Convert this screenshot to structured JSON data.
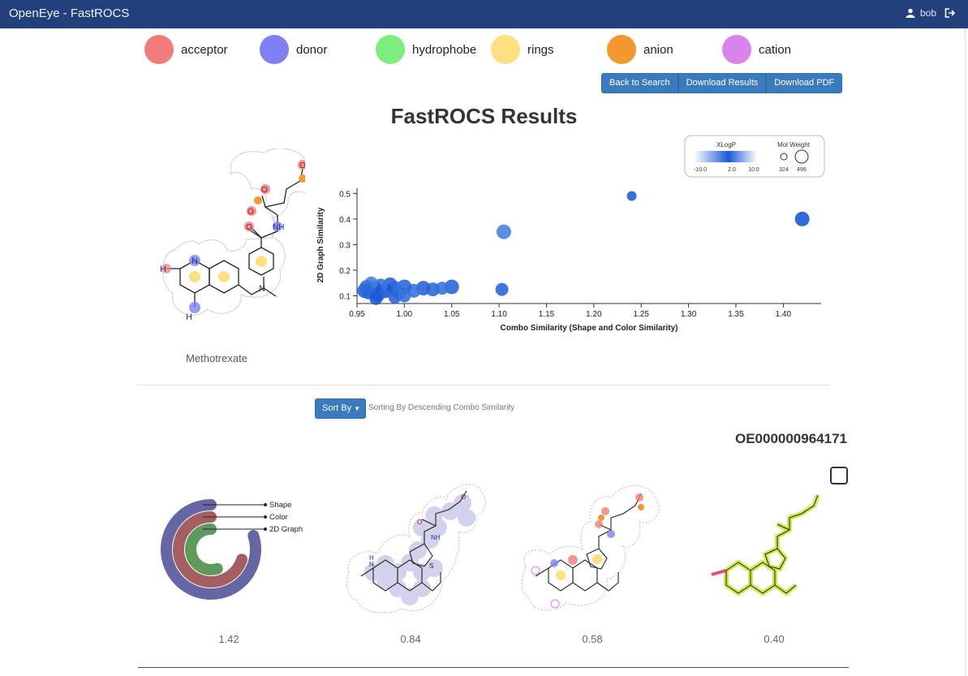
{
  "app": {
    "title": "OpenEye - FastROCS"
  },
  "user": {
    "name": "bob",
    "user_icon": "user-icon",
    "logout_icon": "logout-icon"
  },
  "features": [
    {
      "label": "acceptor",
      "color": "#f47b7b"
    },
    {
      "label": "donor",
      "color": "#8080f5"
    },
    {
      "label": "hydrophobe",
      "color": "#7ded7d"
    },
    {
      "label": "rings",
      "color": "#fde07f"
    },
    {
      "label": "anion",
      "color": "#f5972f"
    },
    {
      "label": "cation",
      "color": "#db83ec"
    }
  ],
  "toolbar": {
    "back": "Back to Search",
    "download_results": "Download Results",
    "download_pdf": "Download PDF"
  },
  "page_title": "FastROCS Results",
  "query": {
    "name": "Methotrexate",
    "atom_labels": {
      "nh2_a": "H",
      "n_a": "N",
      "nh2_b": "H",
      "n_b": "N",
      "n_c": "N",
      "nh": "NH",
      "o1": "O",
      "o2": "O",
      "o3": "O",
      "o4": "O"
    }
  },
  "plot_legend": {
    "color_title": "XLogP",
    "color_ticks": [
      "-10.0",
      "2.0",
      "10.0"
    ],
    "size_title": "Mol Weight",
    "size_ticks": [
      "324",
      "496"
    ]
  },
  "chart_data": {
    "type": "scatter",
    "xlabel": "Combo Similarity (Shape and Color Similarity)",
    "ylabel": "2D Graph Similarity",
    "xlim": [
      0.95,
      1.44
    ],
    "ylim": [
      0.07,
      0.52
    ],
    "x_ticks": [
      "0.95",
      "1.00",
      "1.05",
      "1.10",
      "1.15",
      "1.20",
      "1.25",
      "1.30",
      "1.35",
      "1.40"
    ],
    "y_ticks": [
      "0.1",
      "0.2",
      "0.3",
      "0.4",
      "0.5"
    ],
    "points": [
      {
        "x": 1.42,
        "y": 0.4,
        "size": 1.0,
        "color": "#1a5ad6"
      },
      {
        "x": 1.24,
        "y": 0.49,
        "size": 0.4,
        "color": "#1e5fd8"
      },
      {
        "x": 1.105,
        "y": 0.35,
        "size": 1.0,
        "color": "#4a80e0"
      },
      {
        "x": 1.103,
        "y": 0.125,
        "size": 0.8,
        "color": "#2a66d8"
      },
      {
        "x": 1.05,
        "y": 0.135,
        "size": 1.0,
        "color": "#2a66d8"
      },
      {
        "x": 1.04,
        "y": 0.13,
        "size": 0.8,
        "color": "#3a73de"
      },
      {
        "x": 1.03,
        "y": 0.125,
        "size": 0.9,
        "color": "#2f6bdb"
      },
      {
        "x": 1.02,
        "y": 0.13,
        "size": 1.0,
        "color": "#2a66d8"
      },
      {
        "x": 1.01,
        "y": 0.12,
        "size": 0.9,
        "color": "#3a73de"
      },
      {
        "x": 1.0,
        "y": 0.135,
        "size": 1.0,
        "color": "#2a66d8"
      },
      {
        "x": 0.995,
        "y": 0.11,
        "size": 0.8,
        "color": "#1a5ad6"
      },
      {
        "x": 0.99,
        "y": 0.13,
        "size": 1.0,
        "color": "#3a73de"
      },
      {
        "x": 0.985,
        "y": 0.145,
        "size": 0.9,
        "color": "#2a66d8"
      },
      {
        "x": 0.98,
        "y": 0.12,
        "size": 1.0,
        "color": "#1a5ad6"
      },
      {
        "x": 0.975,
        "y": 0.14,
        "size": 0.9,
        "color": "#3a73de"
      },
      {
        "x": 0.972,
        "y": 0.105,
        "size": 1.0,
        "color": "#2a66d8"
      },
      {
        "x": 0.968,
        "y": 0.13,
        "size": 1.0,
        "color": "#1a5ad6"
      },
      {
        "x": 0.965,
        "y": 0.15,
        "size": 0.8,
        "color": "#4a80e0"
      },
      {
        "x": 0.962,
        "y": 0.115,
        "size": 1.0,
        "color": "#2a66d8"
      },
      {
        "x": 0.96,
        "y": 0.135,
        "size": 0.9,
        "color": "#3a73de"
      },
      {
        "x": 0.958,
        "y": 0.12,
        "size": 1.0,
        "color": "#2a66d8"
      },
      {
        "x": 0.97,
        "y": 0.09,
        "size": 0.8,
        "color": "#1a5ad6"
      },
      {
        "x": 0.99,
        "y": 0.095,
        "size": 0.8,
        "color": "#2a66d8"
      },
      {
        "x": 1.0,
        "y": 0.1,
        "size": 0.8,
        "color": "#3a73de"
      }
    ]
  },
  "sort": {
    "label": "Sort By",
    "description": "Sorting By Descending Combo Similarity"
  },
  "result": {
    "id": "OE000000964171",
    "radial_labels": [
      "Shape",
      "Color",
      "2D Graph"
    ],
    "radial_colors": [
      "#6566a3",
      "#a45e60",
      "#5e9a5e"
    ],
    "radial_fractions": [
      0.8,
      0.7,
      0.55
    ],
    "scores": [
      "1.42",
      "0.84",
      "0.58",
      "0.40"
    ],
    "atom_labels": {
      "h": "H",
      "n": "N",
      "nh": "NH",
      "s": "S",
      "o": "O",
      "ominus": "O⁻"
    }
  }
}
